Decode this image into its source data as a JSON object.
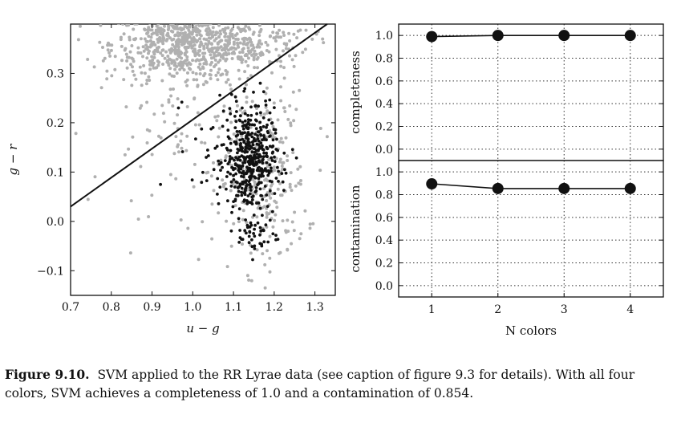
{
  "caption": {
    "label": "Figure 9.10.",
    "text": "SVM applied to the RR Lyrae data (see caption of figure 9.3 for details). With all four colors, SVM achieves a completeness of 1.0 and a contamination of 0.854."
  },
  "chart_data": [
    {
      "type": "scatter",
      "xlabel": "u − g",
      "ylabel": "g − r",
      "xlim": [
        0.7,
        1.35
      ],
      "ylim": [
        -0.15,
        0.4
      ],
      "xticks": [
        "0.7",
        "0.8",
        "0.9",
        "1.0",
        "1.1",
        "1.2",
        "1.3"
      ],
      "xtick_values": [
        0.7,
        0.8,
        0.9,
        1.0,
        1.1,
        1.2,
        1.3
      ],
      "yticks": [
        "−0.1",
        "0.0",
        "0.1",
        "0.2",
        "0.3"
      ],
      "ytick_values": [
        -0.1,
        0.0,
        0.1,
        0.2,
        0.3
      ],
      "grid": false,
      "colors": {
        "background_stars": "#b0b0b0",
        "rr_lyrae": "#111111",
        "boundary": "#111111"
      },
      "series": [
        {
          "role": "background stars",
          "color": "#b0b0b0",
          "clusters": [
            {
              "center": [
                0.98,
                0.36
              ],
              "spread": [
                0.09,
                0.035
              ],
              "count": 650
            },
            {
              "center": [
                1.13,
                0.36
              ],
              "spread": [
                0.08,
                0.025
              ],
              "count": 160
            },
            {
              "center": [
                1.17,
                0.08
              ],
              "spread": [
                0.055,
                0.09
              ],
              "count": 260
            },
            {
              "center": [
                1.0,
                0.2
              ],
              "spread": [
                0.12,
                0.09
              ],
              "count": 120
            }
          ]
        },
        {
          "role": "RR Lyrae",
          "color": "#111111",
          "clusters": [
            {
              "center": [
                1.14,
                0.12
              ],
              "spread": [
                0.03,
                0.055
              ],
              "count": 380
            },
            {
              "center": [
                1.12,
                0.15
              ],
              "spread": [
                0.06,
                0.05
              ],
              "count": 90
            },
            {
              "center": [
                1.16,
                -0.03
              ],
              "spread": [
                0.025,
                0.02
              ],
              "count": 40
            }
          ]
        }
      ],
      "decision_boundary": {
        "x": [
          0.7,
          1.33
        ],
        "y": [
          0.03,
          0.4
        ]
      }
    },
    {
      "type": "line",
      "xlabel": "",
      "ylabel": "completeness",
      "x": [
        1,
        2,
        3,
        4
      ],
      "values": [
        0.99,
        1.0,
        1.0,
        1.0
      ],
      "xlim": [
        0.5,
        4.5
      ],
      "ylim": [
        -0.1,
        1.1
      ],
      "yticks": [
        "0.0",
        "0.2",
        "0.4",
        "0.6",
        "0.8",
        "1.0"
      ],
      "ytick_values": [
        0.0,
        0.2,
        0.4,
        0.6,
        0.8,
        1.0
      ],
      "grid": true
    },
    {
      "type": "line",
      "xlabel": "N colors",
      "ylabel": "contamination",
      "x": [
        1,
        2,
        3,
        4
      ],
      "values": [
        0.895,
        0.854,
        0.854,
        0.854
      ],
      "xlim": [
        0.5,
        4.5
      ],
      "ylim": [
        -0.1,
        1.1
      ],
      "xticks": [
        "1",
        "2",
        "3",
        "4"
      ],
      "xtick_values": [
        1,
        2,
        3,
        4
      ],
      "yticks": [
        "0.0",
        "0.2",
        "0.4",
        "0.6",
        "0.8",
        "1.0"
      ],
      "ytick_values": [
        0.0,
        0.2,
        0.4,
        0.6,
        0.8,
        1.0
      ],
      "grid": true
    }
  ]
}
